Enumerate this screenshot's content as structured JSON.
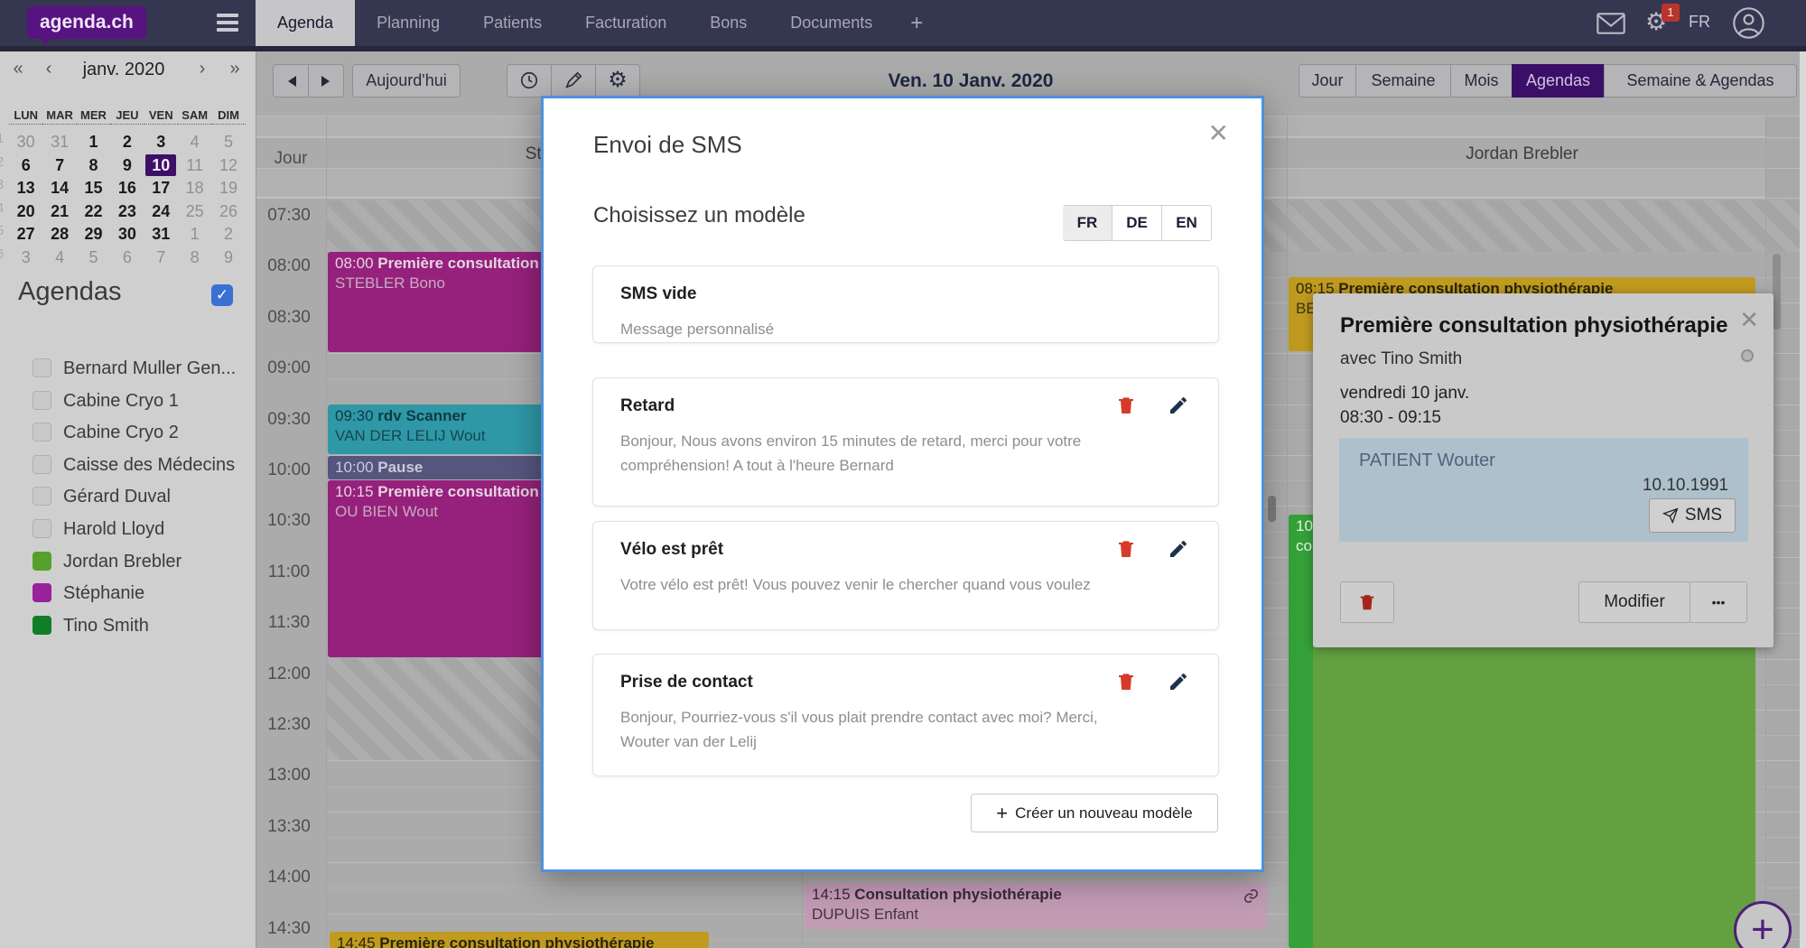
{
  "nav": {
    "logo": "agenda.ch",
    "tabs": [
      {
        "label": "Agenda",
        "active": true
      },
      {
        "label": "Planning",
        "active": false
      },
      {
        "label": "Patients",
        "active": false
      },
      {
        "label": "Facturation",
        "active": false
      },
      {
        "label": "Bons",
        "active": false
      },
      {
        "label": "Documents",
        "active": false
      },
      {
        "label": "+",
        "active": false
      }
    ],
    "icons": [
      "hamburger-icon",
      "mail-icon",
      "gear-icon",
      "profile-icon"
    ],
    "notification_badge": "1",
    "language": "FR"
  },
  "sidebar": {
    "minical": {
      "prev_year": "«",
      "prev_month": "‹",
      "title": "janv. 2020",
      "next_month": "›",
      "next_year": "»",
      "weekdays": [
        "LUN",
        "MAR",
        "MER",
        "JEU",
        "VEN",
        "SAM",
        "DIM"
      ],
      "week_numbers": [
        "1",
        "2",
        "3",
        "4",
        "5",
        "6"
      ],
      "weeks": [
        [
          {
            "t": "30",
            "s": "out"
          },
          {
            "t": "31",
            "s": "out"
          },
          {
            "t": "1",
            "s": "in"
          },
          {
            "t": "2",
            "s": "in"
          },
          {
            "t": "3",
            "s": "in"
          },
          {
            "t": "4",
            "s": "out"
          },
          {
            "t": "5",
            "s": "out"
          }
        ],
        [
          {
            "t": "6",
            "s": "in"
          },
          {
            "t": "7",
            "s": "in"
          },
          {
            "t": "8",
            "s": "in"
          },
          {
            "t": "9",
            "s": "in"
          },
          {
            "t": "10",
            "s": "sel"
          },
          {
            "t": "11",
            "s": "out"
          },
          {
            "t": "12",
            "s": "out"
          }
        ],
        [
          {
            "t": "13",
            "s": "in"
          },
          {
            "t": "14",
            "s": "in"
          },
          {
            "t": "15",
            "s": "in"
          },
          {
            "t": "16",
            "s": "in"
          },
          {
            "t": "17",
            "s": "in"
          },
          {
            "t": "18",
            "s": "out"
          },
          {
            "t": "19",
            "s": "out"
          }
        ],
        [
          {
            "t": "20",
            "s": "in"
          },
          {
            "t": "21",
            "s": "in"
          },
          {
            "t": "22",
            "s": "in"
          },
          {
            "t": "23",
            "s": "in"
          },
          {
            "t": "24",
            "s": "in"
          },
          {
            "t": "25",
            "s": "out"
          },
          {
            "t": "26",
            "s": "out"
          }
        ],
        [
          {
            "t": "27",
            "s": "in"
          },
          {
            "t": "28",
            "s": "in"
          },
          {
            "t": "29",
            "s": "in"
          },
          {
            "t": "30",
            "s": "in"
          },
          {
            "t": "31",
            "s": "in"
          },
          {
            "t": "1",
            "s": "out"
          },
          {
            "t": "2",
            "s": "out"
          }
        ],
        [
          {
            "t": "3",
            "s": "out"
          },
          {
            "t": "4",
            "s": "out"
          },
          {
            "t": "5",
            "s": "out"
          },
          {
            "t": "6",
            "s": "out"
          },
          {
            "t": "7",
            "s": "out"
          },
          {
            "t": "8",
            "s": "out"
          },
          {
            "t": "9",
            "s": "out"
          }
        ]
      ]
    },
    "agendas": {
      "title": "Agendas",
      "master_checkbox_checked": true,
      "check_color": "#3a70d4",
      "check_glyph": "✓",
      "items": [
        {
          "label": "Bernard Muller Gen...",
          "color": null
        },
        {
          "label": "Cabine Cryo 1",
          "color": null
        },
        {
          "label": "Cabine Cryo 2",
          "color": null
        },
        {
          "label": "Caisse des Médecins",
          "color": null
        },
        {
          "label": "Gérard Duval",
          "color": null
        },
        {
          "label": "Harold Lloyd",
          "color": null
        },
        {
          "label": "Jordan Brebler",
          "color": "#56a12c"
        },
        {
          "label": "Stéphanie",
          "color": "#99219c"
        },
        {
          "label": "Tino Smith",
          "color": "#107d27"
        }
      ]
    }
  },
  "toolbar": {
    "today": "Aujourd'hui",
    "icon_buttons": [
      "clock-icon",
      "pen-icon",
      "gear-icon"
    ],
    "date_title": "Ven. 10 Janv. 2020",
    "views": [
      {
        "label": "Jour",
        "active": false
      },
      {
        "label": "Semaine",
        "active": false
      },
      {
        "label": "Mois",
        "active": false
      },
      {
        "label": "Agendas",
        "active": true
      },
      {
        "label": "Semaine & Agendas",
        "active": false
      }
    ],
    "active_view_color": "#3b0f68"
  },
  "calendar": {
    "day_column_label": "Jour",
    "columns": [
      {
        "header": "Stéphanie"
      },
      {
        "header": ""
      },
      {
        "header": "Jordan Brebler"
      }
    ],
    "times": [
      "07:30",
      "08:00",
      "08:30",
      "09:00",
      "09:30",
      "10:00",
      "10:30",
      "11:00",
      "11:30",
      "12:00",
      "12:30",
      "13:00",
      "13:30",
      "14:00",
      "14:30"
    ],
    "events": [
      {
        "time": "08:00",
        "title": "Première consultation",
        "subtitle": "STEBLER Bono",
        "color": "#95217c"
      },
      {
        "time": "09:30",
        "title": "rdv Scanner",
        "subtitle": "VAN DER LELIJ Wout",
        "color": "#2f98a7"
      },
      {
        "time": "10:00",
        "title": "Pause",
        "subtitle": null,
        "color": "#56557d"
      },
      {
        "time": "10:15",
        "title": "Première consultation",
        "subtitle": "OU BIEN Wout",
        "color": "#95217c"
      },
      {
        "time": "14:45",
        "title": "Première consultation physiothérapie",
        "subtitle": null,
        "color": "#c09b20"
      },
      {
        "time": "14:15",
        "title": "Consultation physiothérapie",
        "subtitle": "DUPUIS Enfant",
        "color": "#c29bb5",
        "link_icon": true
      },
      {
        "time": "08:15",
        "title": "Première consultation physiothérapie",
        "subtitle": "BE",
        "color": "#c09b20"
      },
      {
        "time": "",
        "title": "",
        "subtitle": null,
        "color": "#63a040"
      },
      {
        "time": "10",
        "title": "",
        "subtitle": "co",
        "color": "#35a239"
      }
    ]
  },
  "appointment_popup": {
    "title": "Première consultation physiothérapie",
    "with": "avec Tino Smith",
    "date": "vendredi 10 janv.",
    "time_range": "08:30 - 09:15",
    "patient": "PATIENT Wouter",
    "birthdate": "10.10.1991",
    "sms_button": "SMS",
    "modify_button": "Modifier",
    "more_button": "•••",
    "close": "✕",
    "icons": [
      "close-icon",
      "radio-circle-icon",
      "send-icon",
      "trash-icon"
    ]
  },
  "modal": {
    "title": "Envoi de SMS",
    "close": "✕",
    "subtitle": "Choisissez un modèle",
    "accent_border": "#4f90dc",
    "languages": [
      {
        "label": "FR",
        "active": true
      },
      {
        "label": "DE",
        "active": false
      },
      {
        "label": "EN",
        "active": false
      }
    ],
    "templates": [
      {
        "title": "SMS vide",
        "description": "Message personnalisé",
        "deletable": false
      },
      {
        "title": "Retard",
        "description": "Bonjour, Nous avons environ 15 minutes de retard, merci pour votre compréhension! A tout à l'heure Bernard",
        "deletable": true
      },
      {
        "title": "Vélo est prêt",
        "description": "Votre vélo est prêt! Vous pouvez venir le chercher quand vous voulez",
        "deletable": true
      },
      {
        "title": "Prise de contact",
        "description": "Bonjour, Pourriez-vous s'il vous plait prendre contact avec moi? Merci, Wouter van der Lelij",
        "deletable": true
      }
    ],
    "trash_color": "#d63b2a",
    "pencil_color": "#22304f",
    "create_plus": "+",
    "create_button": "Créer un nouveau modèle"
  },
  "fab": {
    "label": "+",
    "color": "#4b2177"
  }
}
